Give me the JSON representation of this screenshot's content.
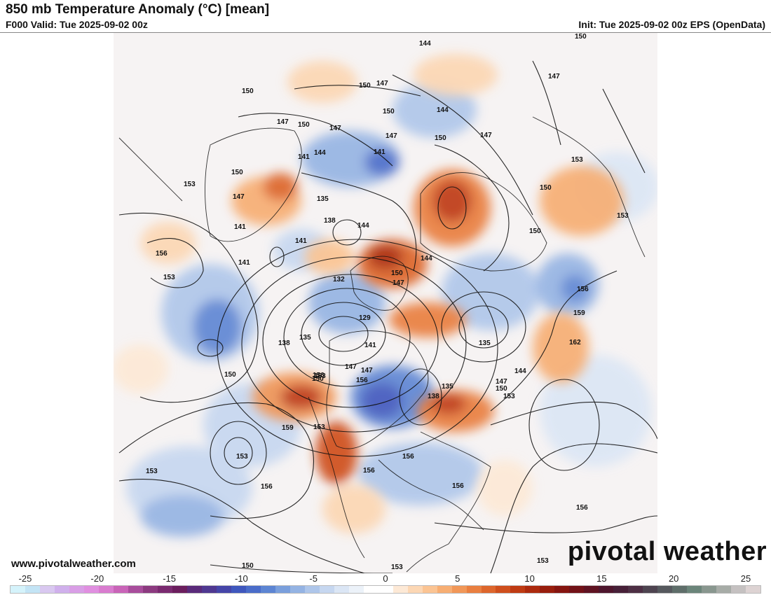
{
  "header": {
    "title": "850 mb Temperature Anomaly (°C) [mean]",
    "valid": "F000 Valid: Tue 2025-09-02 00z",
    "init": "Init: Tue 2025-09-02 00z EPS (OpenData)"
  },
  "footer": {
    "website": "www.pivotalweather.com",
    "brand": "pivotal weather"
  },
  "colorbar": {
    "min": -25,
    "max": 25,
    "tick_labels": [
      "-25",
      "-20",
      "-15",
      "-10",
      "-5",
      "0",
      "5",
      "10",
      "15",
      "20",
      "25"
    ],
    "colors": [
      "#d5f3fb",
      "#c3e4f5",
      "#d9c8f0",
      "#d0b0ec",
      "#d99ee6",
      "#e08fe0",
      "#d97ccf",
      "#c964b8",
      "#a84d9c",
      "#8c3a80",
      "#7a2a70",
      "#6b1e5e",
      "#5a2a7a",
      "#4f3891",
      "#4545a8",
      "#3f57bd",
      "#4a6cc9",
      "#5d85d3",
      "#7a9fdc",
      "#94b3e3",
      "#aec6ea",
      "#c6d7f0",
      "#dbe6f5",
      "#ecf2f9",
      "#ffffff",
      "#ffffff",
      "#fde9d6",
      "#fcd7b4",
      "#fbc493",
      "#f7ae73",
      "#f19758",
      "#e97f40",
      "#dd662c",
      "#cf4f1d",
      "#bf3b13",
      "#ac2a0e",
      "#981e0d",
      "#851510",
      "#721218",
      "#5f1322",
      "#4e162d",
      "#472038",
      "#4d2f44",
      "#4e4450",
      "#56595e",
      "#5f6e6a",
      "#6b857a",
      "#89978f",
      "#a7aca7",
      "#c5c1c1",
      "#ddd3d3"
    ]
  },
  "contour_labels": [
    "150",
    "144",
    "147",
    "150",
    "144",
    "147",
    "150",
    "147",
    "150",
    "147",
    "153",
    "150",
    "144",
    "141",
    "141",
    "147",
    "153",
    "147",
    "150",
    "150",
    "153",
    "135",
    "138",
    "144",
    "147",
    "150",
    "150",
    "156",
    "141",
    "141",
    "141",
    "132",
    "144",
    "150",
    "147",
    "153",
    "156",
    "159",
    "129",
    "138",
    "135",
    "141",
    "147",
    "150",
    "153",
    "156",
    "147",
    "135",
    "138",
    "135",
    "147",
    "150",
    "153",
    "144",
    "162",
    "150",
    "156",
    "159",
    "153",
    "153",
    "156",
    "156",
    "156",
    "153",
    "156",
    "156",
    "150",
    "153",
    "153"
  ],
  "chart_data": {
    "type": "heatmap",
    "variable": "850 mb Temperature Anomaly (°C) [mean]",
    "colorbar_range": [
      -25,
      25
    ],
    "contour_values": [
      129,
      132,
      135,
      138,
      141,
      144,
      147,
      150,
      153,
      156,
      159,
      162
    ]
  }
}
